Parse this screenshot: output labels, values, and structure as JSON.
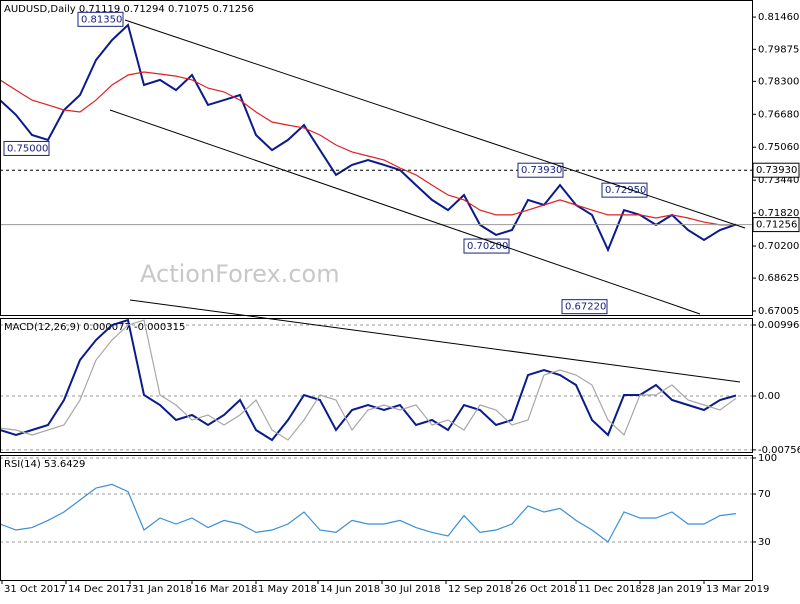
{
  "chart_data": [
    {
      "type": "price",
      "title": "AUDUSD,Daily  0.71119 0.71294 0.71075 0.71256",
      "watermark": "ActionForex.com",
      "x": [
        0,
        8,
        16,
        24,
        32,
        40,
        48,
        56,
        64,
        72,
        80,
        88,
        96,
        104,
        112,
        120,
        128,
        136,
        144,
        152,
        160,
        168,
        176,
        184,
        192,
        200,
        208,
        216,
        224,
        232,
        240,
        248,
        256,
        264,
        272,
        280,
        288,
        296,
        304,
        312,
        320,
        328,
        336,
        344,
        352,
        360,
        368
      ],
      "xlim": [
        0,
        376
      ],
      "ylim": [
        0.6681,
        0.823
      ],
      "yticks": [
        {
          "value": 0.8146,
          "label": "0.81460"
        },
        {
          "value": 0.79875,
          "label": "0.79875"
        },
        {
          "value": 0.783,
          "label": "0.78300"
        },
        {
          "value": 0.7668,
          "label": "0.76680"
        },
        {
          "value": 0.7506,
          "label": "0.75060"
        },
        {
          "value": 0.7344,
          "label": "0.73440"
        },
        {
          "value": 0.7182,
          "label": "0.71820"
        },
        {
          "value": 0.702,
          "label": "0.70200"
        },
        {
          "value": 0.68625,
          "label": "0.68625"
        },
        {
          "value": 0.67005,
          "label": "0.67005"
        }
      ],
      "series": [
        {
          "color": "#0b1a8c",
          "values": [
            0.7738,
            0.7665,
            0.7566,
            0.7542,
            0.7689,
            0.7763,
            0.7935,
            0.8033,
            0.8107,
            0.7812,
            0.7837,
            0.7787,
            0.7861,
            0.7714,
            0.7738,
            0.7763,
            0.7566,
            0.7492,
            0.7542,
            0.7615,
            0.7492,
            0.737,
            0.7419,
            0.7443,
            0.7419,
            0.7394,
            0.732,
            0.7247,
            0.7197,
            0.7271,
            0.7124,
            0.7075,
            0.7099,
            0.7247,
            0.7222,
            0.732,
            0.7222,
            0.7173,
            0.7001,
            0.7197,
            0.7173,
            0.7124,
            0.7173,
            0.7099,
            0.705,
            0.7099,
            0.71256
          ]
        },
        {
          "color": "#e02020",
          "values": [
            0.7837,
            0.7787,
            0.7738,
            0.7714,
            0.7689,
            0.7679,
            0.7738,
            0.7812,
            0.7861,
            0.7876,
            0.7866,
            0.7856,
            0.7837,
            0.7797,
            0.7778,
            0.7738,
            0.7679,
            0.763,
            0.7615,
            0.7601,
            0.7566,
            0.7517,
            0.7483,
            0.7463,
            0.7443,
            0.7404,
            0.737,
            0.732,
            0.7271,
            0.7247,
            0.7197,
            0.7173,
            0.7173,
            0.7197,
            0.7222,
            0.7247,
            0.7222,
            0.7197,
            0.7173,
            0.7173,
            0.7173,
            0.7158,
            0.7173,
            0.7158,
            0.7138,
            0.7124,
            0.7124
          ]
        }
      ],
      "price_lines": [
        {
          "value": 0.7393,
          "label": "0.73930",
          "style": "dashed"
        },
        {
          "value": 0.71256,
          "label": "0.71256",
          "style": "solid"
        }
      ],
      "annotations": [
        {
          "x": 62,
          "y": {
            "value": 0.8135,
            "label": "0.81350"
          }
        },
        {
          "x": 25,
          "y": {
            "value": 0.75,
            "label": "0.75000"
          }
        },
        {
          "x": 282,
          "y": {
            "value": 0.7393,
            "label": "0.73930"
          }
        },
        {
          "x": 324,
          "y": {
            "value": 0.7295,
            "label": "0.72950"
          }
        },
        {
          "x": 255,
          "y": {
            "value": 0.702,
            "label": "0.70200"
          }
        },
        {
          "x": 304,
          "y": {
            "value": 0.6722,
            "label": "0.67220"
          }
        }
      ]
    },
    {
      "type": "macd",
      "title": "MACD(12,26,9) 0.000077 -0.000315",
      "x": [
        0,
        8,
        16,
        24,
        32,
        40,
        48,
        56,
        64,
        72,
        80,
        88,
        96,
        104,
        112,
        120,
        128,
        136,
        144,
        152,
        160,
        168,
        176,
        184,
        192,
        200,
        208,
        216,
        224,
        232,
        240,
        248,
        256,
        264,
        272,
        280,
        288,
        296,
        304,
        312,
        320,
        328,
        336,
        344,
        352,
        360,
        368
      ],
      "xlim": [
        0,
        376
      ],
      "ylim": [
        -0.00786,
        0.01095
      ],
      "yticks": [
        0.009964,
        {
          "value": 0,
          "label": "0.00"
        },
        -0.00756
      ],
      "grid": true,
      "series": [
        {
          "color": "#0b1a8c",
          "values": [
            -0.00477,
            -0.00547,
            -0.00477,
            -0.00407,
            -0.00056,
            0.00505,
            0.00786,
            0.00996,
            0.01066,
            0.00014,
            -0.00126,
            -0.00337,
            -0.00267,
            -0.00407,
            -0.00267,
            -0.00056,
            -0.00477,
            -0.00617,
            -0.00337,
            0.00014,
            -0.00056,
            -0.00477,
            -0.00196,
            -0.00126,
            -0.00196,
            -0.00126,
            -0.00407,
            -0.00337,
            -0.00477,
            -0.00126,
            -0.00196,
            -0.00407,
            -0.00337,
            0.00295,
            0.00365,
            0.00295,
            0.00154,
            -0.00337,
            -0.00547,
            0.00014,
            0.00014,
            0.00154,
            -0.00056,
            -0.00126,
            -0.00196,
            -0.00056,
            7.7e-05
          ]
        },
        {
          "color": "#a8a8a8",
          "values": [
            -0.0045,
            -0.00477,
            -0.00547,
            -0.00477,
            -0.00407,
            -0.00056,
            0.00505,
            0.00786,
            0.00996,
            0.01066,
            0.00014,
            -0.00126,
            -0.00337,
            -0.00267,
            -0.00407,
            -0.00267,
            -0.00056,
            -0.00477,
            -0.00617,
            -0.00337,
            0.00014,
            -0.00056,
            -0.00477,
            -0.00196,
            -0.00126,
            -0.00196,
            -0.00126,
            -0.00407,
            -0.00337,
            -0.00477,
            -0.00126,
            -0.00196,
            -0.00407,
            -0.00337,
            0.00295,
            0.00365,
            0.00295,
            0.00154,
            -0.00337,
            -0.00547,
            0.00014,
            0.00014,
            0.00154,
            -0.00056,
            -0.00126,
            -0.00196,
            -0.000315
          ]
        }
      ]
    },
    {
      "type": "rsi",
      "title": "RSI(14) 53.6429",
      "x": [
        0,
        8,
        16,
        24,
        32,
        40,
        48,
        56,
        64,
        72,
        80,
        88,
        96,
        104,
        112,
        120,
        128,
        136,
        144,
        152,
        160,
        168,
        176,
        184,
        192,
        200,
        208,
        216,
        224,
        232,
        240,
        248,
        256,
        264,
        272,
        280,
        288,
        296,
        304,
        312,
        320,
        328,
        336,
        344,
        352,
        360,
        368
      ],
      "xlim": [
        0,
        376
      ],
      "ylim": [
        -1.7,
        102.5
      ],
      "yticks": [
        30,
        70,
        100
      ],
      "grid": true,
      "xticks": [
        {
          "value": 1,
          "label": "31 Oct 2017"
        },
        {
          "value": 33,
          "label": "14 Dec 2017"
        },
        {
          "value": 65,
          "label": "31 Jan 2018"
        },
        {
          "value": 96,
          "label": "16 Mar 2018"
        },
        {
          "value": 128,
          "label": "1 May 2018"
        },
        {
          "value": 159,
          "label": "14 Jun 2018"
        },
        {
          "value": 191,
          "label": "30 Jul 2018"
        },
        {
          "value": 223,
          "label": "12 Sep 2018"
        },
        {
          "value": 256,
          "label": "26 Oct 2018"
        },
        {
          "value": 288,
          "label": "11 Dec 2018"
        },
        {
          "value": 320,
          "label": "28 Jan 2019"
        },
        {
          "value": 352,
          "label": "13 Mar 2019"
        }
      ],
      "series": [
        {
          "color": "#3a8fd8",
          "values": [
            45,
            40,
            42,
            48,
            55,
            65,
            75,
            78,
            72,
            40,
            50,
            45,
            50,
            42,
            48,
            45,
            38,
            40,
            45,
            55,
            40,
            38,
            48,
            45,
            45,
            48,
            42,
            38,
            35,
            52,
            38,
            40,
            45,
            60,
            55,
            58,
            48,
            40,
            30,
            55,
            50,
            50,
            55,
            45,
            45,
            52,
            53.6429
          ]
        }
      ]
    }
  ]
}
